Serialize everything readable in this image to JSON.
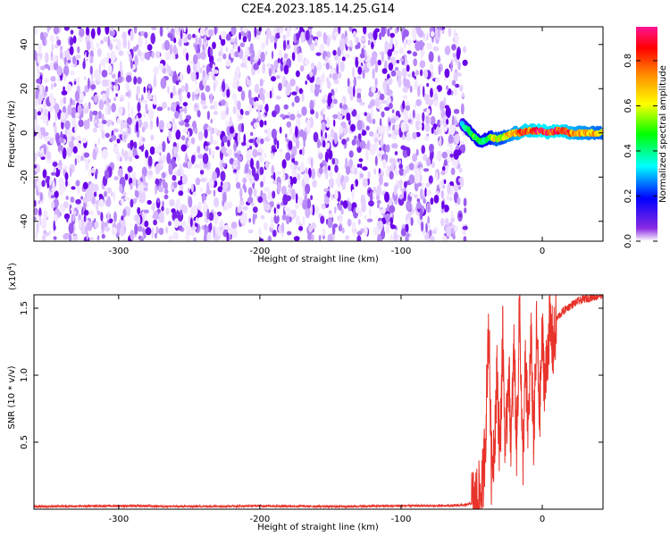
{
  "title": "C2E4.2023.185.14.25.G14",
  "chart_data": [
    {
      "type": "heatmap",
      "name": "spectrogram",
      "xlabel": "Height of straight line (km)",
      "ylabel": "Frequency (Hz)",
      "xlim": [
        -360,
        43
      ],
      "ylim": [
        -49,
        48
      ],
      "xticks": [
        -300,
        -200,
        -100,
        0
      ],
      "xtick_labels": [
        "-300",
        "-200",
        "-100",
        "0"
      ],
      "yticks": [
        -40,
        -20,
        0,
        20,
        40
      ],
      "ytick_labels": [
        "-40",
        "-20",
        "0",
        "20",
        "40"
      ],
      "noise_region": {
        "x_range": [
          -360,
          -57
        ],
        "y_range": [
          -49,
          48
        ],
        "amplitude": "0.0-0.15"
      },
      "signal_trace": {
        "x": [
          -57,
          -52,
          -48,
          -44,
          -40,
          -36,
          -32,
          -28,
          -24,
          -20,
          -16,
          -12,
          -8,
          -4,
          0,
          5,
          10,
          15,
          20,
          25,
          30,
          35,
          43
        ],
        "y": [
          4,
          1,
          -2,
          -4,
          -3,
          -2,
          -3,
          -2,
          -1,
          0,
          0,
          1,
          1,
          1,
          1,
          0,
          1,
          1,
          0,
          0,
          0,
          0,
          0
        ],
        "amplitude": [
          0.35,
          0.45,
          0.55,
          0.5,
          0.45,
          0.6,
          0.7,
          0.65,
          0.75,
          0.8,
          0.85,
          0.9,
          0.88,
          0.92,
          0.95,
          0.9,
          0.93,
          0.9,
          0.85,
          0.8,
          0.78,
          0.75,
          0.7
        ]
      },
      "colorbar": {
        "label": "Normalized spectral amplitude",
        "range": [
          0,
          0.95
        ],
        "ticks": [
          0.0,
          0.2,
          0.4,
          0.6,
          0.8
        ],
        "tick_labels": [
          "0.0",
          "0.2",
          "0.4",
          "0.6",
          "0.8"
        ],
        "colors": [
          "#ffffff",
          "#8a2be2",
          "#0000ff",
          "#00ffff",
          "#00ff00",
          "#ffff00",
          "#ff8800",
          "#ff0000",
          "#ff1493"
        ]
      }
    },
    {
      "type": "line",
      "name": "snr",
      "xlabel": "Height of straight line (km)",
      "ylabel": "SNR (10 * v/v)",
      "exponent_label": "(x10",
      "exponent_sup": "4",
      "exponent_close": ")",
      "xlim": [
        -360,
        43
      ],
      "ylim": [
        0,
        1.6
      ],
      "xticks": [
        -300,
        -200,
        -100,
        0
      ],
      "xtick_labels": [
        "-300",
        "-200",
        "-100",
        "0"
      ],
      "yticks": [
        0.5,
        1.0,
        1.5
      ],
      "ytick_labels": [
        "0.5",
        "1.0",
        "1.5"
      ],
      "color": "#e8332a",
      "series": [
        {
          "x": [
            -360,
            -300,
            -250,
            -200,
            -150,
            -100,
            -70,
            -55,
            -48,
            -44,
            -42,
            -40,
            -38,
            -36,
            -34,
            -32,
            -30,
            -28,
            -26,
            -24,
            -22,
            -20,
            -18,
            -16,
            -14,
            -12,
            -10,
            -8,
            -6,
            -4,
            -2,
            0,
            2,
            5,
            8,
            10,
            15,
            20,
            25,
            30,
            35,
            43
          ],
          "y": [
            0.02,
            0.025,
            0.02,
            0.025,
            0.02,
            0.025,
            0.025,
            0.03,
            0.05,
            0.1,
            0.2,
            0.6,
            1.45,
            0.3,
            0.5,
            1.0,
            0.4,
            1.3,
            0.35,
            1.1,
            0.5,
            1.2,
            0.45,
            1.6,
            0.3,
            1.05,
            0.6,
            1.25,
            0.5,
            1.35,
            0.7,
            1.28,
            0.9,
            1.38,
            1.2,
            1.42,
            1.48,
            1.52,
            1.55,
            1.57,
            1.58,
            1.6
          ]
        }
      ]
    }
  ]
}
